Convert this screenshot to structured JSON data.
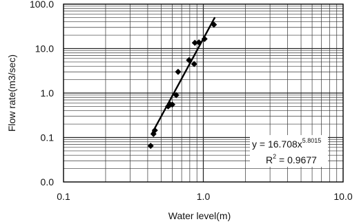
{
  "chart_data": {
    "type": "scatter",
    "title": "",
    "xlabel": "Water level(m)",
    "ylabel": "Flow rate(m3/sec)",
    "xscale": "log",
    "yscale": "log",
    "xlim": [
      0.1,
      10.0
    ],
    "ylim": [
      0.01,
      100.0
    ],
    "grid": true,
    "x_tick_labels": [
      {
        "value": 0.1,
        "label": "0.1"
      },
      {
        "value": 1.0,
        "label": "1.0"
      },
      {
        "value": 10.0,
        "label": "10.0"
      }
    ],
    "y_tick_labels": [
      {
        "value": 0.01,
        "label": "0.0"
      },
      {
        "value": 0.1,
        "label": "0.1"
      },
      {
        "value": 1.0,
        "label": "1.0"
      },
      {
        "value": 10.0,
        "label": "10.0"
      },
      {
        "value": 100.0,
        "label": "100.0"
      }
    ],
    "series": [
      {
        "marker": "diamond",
        "x": [
          0.42,
          0.44,
          0.45,
          0.56,
          0.58,
          0.6,
          0.64,
          0.66,
          0.79,
          0.86,
          0.87,
          0.93,
          1.02,
          1.19
        ],
        "y": [
          0.065,
          0.12,
          0.145,
          0.5,
          0.55,
          0.55,
          0.9,
          3.0,
          5.5,
          4.5,
          13.5,
          13.8,
          16.5,
          34.5
        ]
      }
    ],
    "trendline": {
      "coef": 16.708,
      "exponent": 5.8015,
      "x_range": [
        0.43,
        1.21
      ]
    },
    "annotation": {
      "eq_prefix": "y = 16.708x",
      "eq_exponent": "5.8015",
      "r2_prefix": "R",
      "r2_exponent": "2",
      "r2_suffix": " = 0.9677"
    }
  }
}
